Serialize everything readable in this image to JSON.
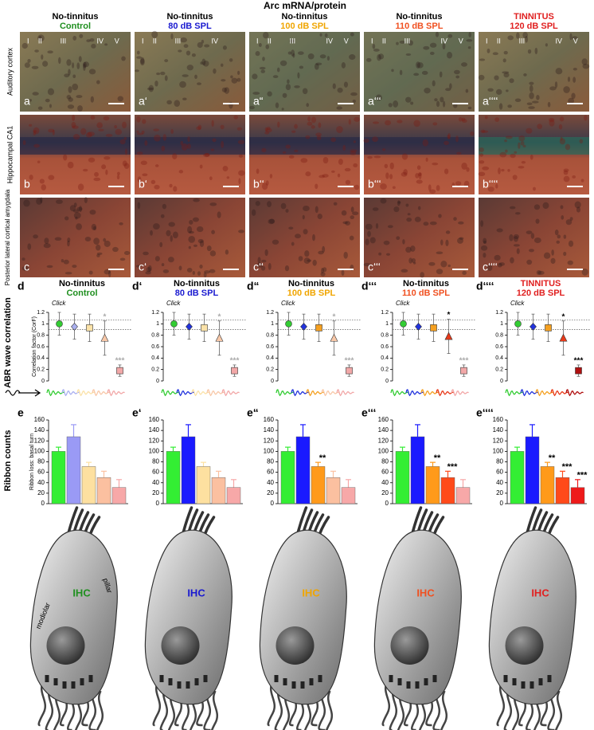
{
  "title": "Arc mRNA/protein",
  "columns": [
    {
      "heading": "No-tinnitus",
      "heading_color": "#000000",
      "condition": "Control",
      "color": "#1f8f1f"
    },
    {
      "heading": "No-tinnitus",
      "heading_color": "#000000",
      "condition": "80 dB SPL",
      "color": "#1a1ad0"
    },
    {
      "heading": "No-tinnitus",
      "heading_color": "#000000",
      "condition": "100 dB SPL",
      "color": "#f0a500"
    },
    {
      "heading": "No-tinnitus",
      "heading_color": "#000000",
      "condition": "110 dB SPL",
      "color": "#f05020"
    },
    {
      "heading": "TINNITUS",
      "heading_color": "#e02020",
      "condition": "120 dB SPL",
      "color": "#e02020"
    }
  ],
  "photo_rows": [
    {
      "label": "Auditory cortex",
      "panels": [
        {
          "label": "a",
          "layers": [
            "I",
            "II",
            "III",
            "IV",
            "V"
          ]
        },
        {
          "label": "a‘",
          "layers": [
            "I",
            "II",
            "III",
            "IV"
          ]
        },
        {
          "label": "a“",
          "layers": [
            "I",
            "II",
            "III",
            "IV",
            "V"
          ]
        },
        {
          "label": "a‘‘‘",
          "layers": [
            "I",
            "II",
            "III",
            "IV",
            "V"
          ]
        },
        {
          "label": "a‘‘‘‘",
          "layers": [
            "I",
            "II",
            "III",
            "IV",
            "V"
          ]
        }
      ]
    },
    {
      "label": "Hippocampal CA1",
      "panels": [
        {
          "label": "b"
        },
        {
          "label": "b‘"
        },
        {
          "label": "b‘‘"
        },
        {
          "label": "b‘‘‘"
        },
        {
          "label": "b‘‘‘‘"
        }
      ]
    },
    {
      "label": "Posterior lateral cortical amygdala",
      "panels": [
        {
          "label": "c"
        },
        {
          "label": "c‘"
        },
        {
          "label": "c‘‘"
        },
        {
          "label": "c‘‘‘"
        },
        {
          "label": "c‘‘‘‘"
        }
      ]
    }
  ],
  "group_labels": {
    "correlation": "ABR wave correlation",
    "ribbons": "Ribbon counts"
  },
  "chart_data": [
    {
      "type": "scatter",
      "label": "d",
      "title": "No-tinnitus",
      "title_color": "#000000",
      "subtitle": "Control",
      "subtitle_color": "#1f8f1f",
      "annotation": "Click",
      "ylabel": "Correlation factor (CorF)",
      "x": [
        1,
        2,
        3,
        4,
        5
      ],
      "xlim": [
        0.5,
        5.5
      ],
      "values": [
        1.0,
        0.95,
        0.93,
        0.75,
        0.18
      ],
      "errors": [
        0.2,
        0.22,
        0.24,
        0.3,
        0.1
      ],
      "markers": [
        "circle",
        "diamond",
        "square",
        "triangle",
        "square"
      ],
      "colors": [
        "#33cc33",
        "#aab0f0",
        "#fbe2a8",
        "#f8c8a8",
        "#f2a8a8"
      ],
      "significance": [
        null,
        null,
        null,
        "*",
        "***"
      ],
      "significance_colors": [
        null,
        null,
        null,
        "#aaaaaa",
        "#aaaaaa"
      ],
      "reference_lines": [
        1.07,
        0.9
      ],
      "ylim": [
        0,
        1.2
      ],
      "yticks": [
        0,
        0.2,
        0.4,
        0.6,
        0.8,
        1,
        1.2
      ]
    },
    {
      "type": "scatter",
      "label": "d‘",
      "title": "No-tinnitus",
      "title_color": "#000000",
      "subtitle": "80 dB SPL",
      "subtitle_color": "#1a1ad0",
      "annotation": "Click",
      "x": [
        1,
        2,
        3,
        4,
        5
      ],
      "xlim": [
        0.5,
        5.5
      ],
      "values": [
        1.0,
        0.95,
        0.93,
        0.75,
        0.18
      ],
      "errors": [
        0.2,
        0.22,
        0.24,
        0.3,
        0.1
      ],
      "markers": [
        "circle",
        "diamond",
        "square",
        "triangle",
        "square"
      ],
      "colors": [
        "#33cc33",
        "#2233dd",
        "#fbe2a8",
        "#f8c8a8",
        "#f2a8a8"
      ],
      "significance": [
        null,
        null,
        null,
        "*",
        "***"
      ],
      "significance_colors": [
        null,
        null,
        null,
        "#aaaaaa",
        "#aaaaaa"
      ],
      "reference_lines": [
        1.07,
        0.9
      ],
      "ylim": [
        0,
        1.2
      ],
      "yticks": [
        0,
        0.2,
        0.4,
        0.6,
        0.8,
        1,
        1.2
      ]
    },
    {
      "type": "scatter",
      "label": "d“",
      "title": "No-tinnitus",
      "title_color": "#000000",
      "subtitle": "100 dB SPL",
      "subtitle_color": "#f0a500",
      "annotation": "Click",
      "x": [
        1,
        2,
        3,
        4,
        5
      ],
      "xlim": [
        0.5,
        5.5
      ],
      "values": [
        1.0,
        0.95,
        0.93,
        0.75,
        0.18
      ],
      "errors": [
        0.2,
        0.22,
        0.24,
        0.3,
        0.1
      ],
      "markers": [
        "circle",
        "diamond",
        "square",
        "triangle",
        "square"
      ],
      "colors": [
        "#33cc33",
        "#2233dd",
        "#f5a020",
        "#f8c8a8",
        "#f2a8a8"
      ],
      "significance": [
        null,
        null,
        null,
        "*",
        "***"
      ],
      "significance_colors": [
        null,
        null,
        null,
        "#aaaaaa",
        "#aaaaaa"
      ],
      "reference_lines": [
        1.07,
        0.9
      ],
      "ylim": [
        0,
        1.2
      ],
      "yticks": [
        0,
        0.2,
        0.4,
        0.6,
        0.8,
        1,
        1.2
      ]
    },
    {
      "type": "scatter",
      "label": "d‘‘‘",
      "title": "No-tinnitus",
      "title_color": "#000000",
      "subtitle": "110 dB SPL",
      "subtitle_color": "#f05020",
      "annotation": "Click",
      "x": [
        1,
        2,
        3,
        4,
        5
      ],
      "xlim": [
        0.5,
        5.5
      ],
      "values": [
        1.0,
        0.95,
        0.93,
        0.78,
        0.18
      ],
      "errors": [
        0.2,
        0.22,
        0.24,
        0.3,
        0.1
      ],
      "markers": [
        "circle",
        "diamond",
        "square",
        "triangle",
        "square"
      ],
      "colors": [
        "#33cc33",
        "#2233dd",
        "#f5a020",
        "#e83a1a",
        "#f2a8a8"
      ],
      "significance": [
        null,
        null,
        null,
        "*",
        "***"
      ],
      "significance_colors": [
        null,
        null,
        null,
        "#000000",
        "#aaaaaa"
      ],
      "reference_lines": [
        1.07,
        0.9
      ],
      "ylim": [
        0,
        1.2
      ],
      "yticks": [
        0,
        0.2,
        0.4,
        0.6,
        0.8,
        1,
        1.2
      ]
    },
    {
      "type": "scatter",
      "label": "d‘‘‘‘",
      "title": "TINNITUS",
      "title_color": "#e02020",
      "subtitle": "120 dB SPL",
      "subtitle_color": "#e02020",
      "annotation": "Click",
      "x": [
        1,
        2,
        3,
        4,
        5
      ],
      "xlim": [
        0.5,
        5.5
      ],
      "values": [
        1.0,
        0.95,
        0.93,
        0.75,
        0.18
      ],
      "errors": [
        0.2,
        0.22,
        0.24,
        0.3,
        0.1
      ],
      "markers": [
        "circle",
        "diamond",
        "square",
        "triangle",
        "square"
      ],
      "colors": [
        "#33cc33",
        "#2233dd",
        "#f5a020",
        "#e83a1a",
        "#b01010"
      ],
      "significance": [
        null,
        null,
        null,
        "*",
        "***"
      ],
      "significance_colors": [
        null,
        null,
        null,
        "#000000",
        "#000000"
      ],
      "reference_lines": [
        1.07,
        0.9
      ],
      "ylim": [
        0,
        1.2
      ],
      "yticks": [
        0,
        0.2,
        0.4,
        0.6,
        0.8,
        1,
        1.2
      ]
    },
    {
      "type": "bar",
      "label": "e",
      "ylabel": "Ribbon loss: basal turn",
      "values": [
        100,
        128,
        71,
        50,
        31
      ],
      "errors": [
        8,
        23,
        8,
        12,
        15
      ],
      "colors": [
        "#33ee33",
        "#9a9af5",
        "#fde0a0",
        "#fbc0a0",
        "#f7a8a8"
      ],
      "significance": [
        null,
        null,
        null,
        null,
        null
      ],
      "ylim": [
        0,
        160
      ],
      "yticks": [
        0,
        20,
        40,
        60,
        80,
        100,
        120,
        140,
        160
      ]
    },
    {
      "type": "bar",
      "label": "e‘",
      "values": [
        100,
        128,
        71,
        50,
        31
      ],
      "errors": [
        8,
        23,
        8,
        12,
        15
      ],
      "colors": [
        "#33ee33",
        "#1a1aff",
        "#fde0a0",
        "#fbc0a0",
        "#f7a8a8"
      ],
      "significance": [
        null,
        null,
        null,
        null,
        null
      ],
      "ylim": [
        0,
        160
      ],
      "yticks": [
        0,
        20,
        40,
        60,
        80,
        100,
        120,
        140,
        160
      ]
    },
    {
      "type": "bar",
      "label": "e“",
      "values": [
        100,
        128,
        71,
        50,
        31
      ],
      "errors": [
        8,
        23,
        8,
        12,
        15
      ],
      "colors": [
        "#33ee33",
        "#1a1aff",
        "#ff9a1a",
        "#fbc0a0",
        "#f7a8a8"
      ],
      "significance": [
        null,
        null,
        "**",
        null,
        null
      ],
      "ylim": [
        0,
        160
      ],
      "yticks": [
        0,
        20,
        40,
        60,
        80,
        100,
        120,
        140,
        160
      ]
    },
    {
      "type": "bar",
      "label": "e‘‘‘",
      "values": [
        100,
        128,
        71,
        50,
        31
      ],
      "errors": [
        8,
        23,
        8,
        12,
        15
      ],
      "colors": [
        "#33ee33",
        "#1a1aff",
        "#ff9a1a",
        "#ff4a1a",
        "#f7a8a8"
      ],
      "significance": [
        null,
        null,
        "**",
        "***",
        null
      ],
      "ylim": [
        0,
        160
      ],
      "yticks": [
        0,
        20,
        40,
        60,
        80,
        100,
        120,
        140,
        160
      ]
    },
    {
      "type": "bar",
      "label": "e‘‘‘‘",
      "values": [
        100,
        128,
        71,
        50,
        31
      ],
      "errors": [
        8,
        23,
        8,
        12,
        15
      ],
      "colors": [
        "#33ee33",
        "#1a1aff",
        "#ff9a1a",
        "#ff4a1a",
        "#ee1a1a"
      ],
      "significance": [
        null,
        null,
        "**",
        "***",
        "***"
      ],
      "ylim": [
        0,
        160
      ],
      "yticks": [
        0,
        20,
        40,
        60,
        80,
        100,
        120,
        140,
        160
      ]
    }
  ],
  "cells": [
    {
      "label": "IHC",
      "color": "#1f8f1f"
    },
    {
      "label": "IHC",
      "color": "#1a1ad0"
    },
    {
      "label": "IHC",
      "color": "#f0a500"
    },
    {
      "label": "IHC",
      "color": "#f05020"
    },
    {
      "label": "IHC",
      "color": "#e02020"
    }
  ],
  "cell_annotations": [
    "modiolar",
    "pillar"
  ]
}
